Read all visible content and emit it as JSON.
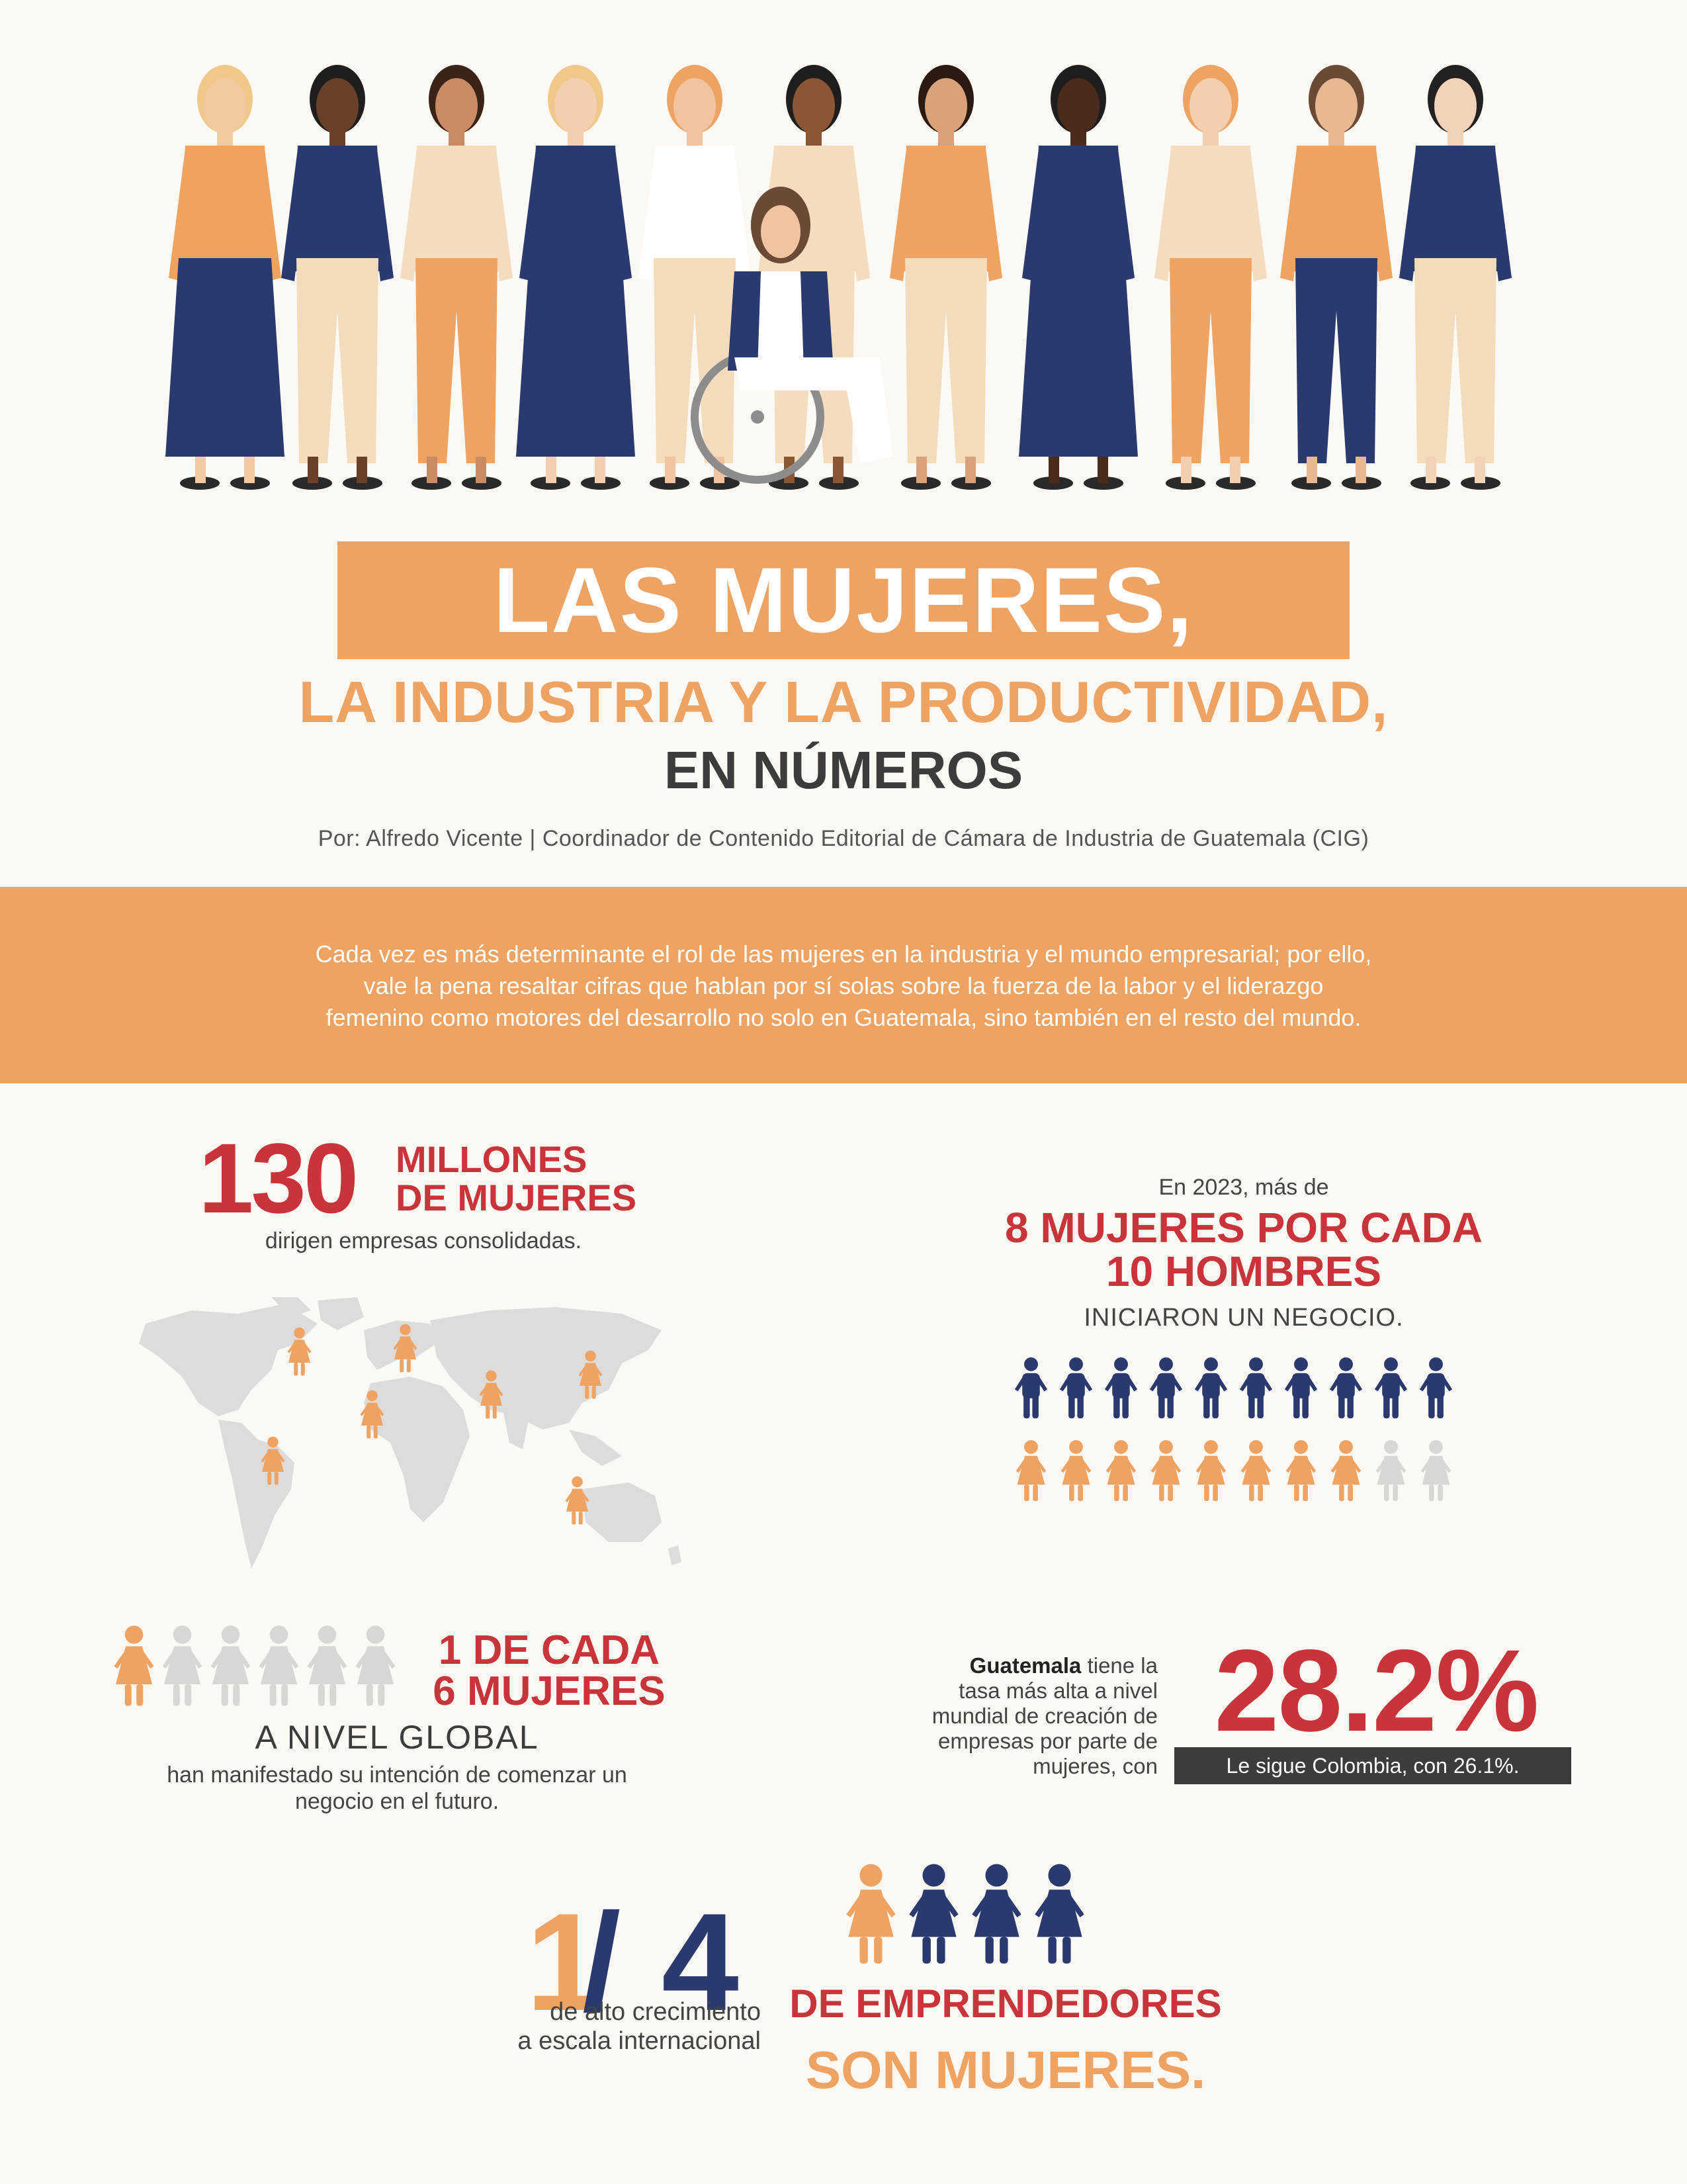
{
  "header": {
    "title_main": "LAS MUJERES,",
    "title_sub": "LA INDUSTRIA Y LA PRODUCTIVIDAD,",
    "title_third": "EN NÚMEROS",
    "byline": "Por: Alfredo Vicente | Coordinador de Contenido Editorial de Cámara de Industria de Guatemala (CIG)"
  },
  "intro": {
    "line1": "Cada vez es más determinante el rol de las mujeres en la industria y el mundo empresarial; por ello,",
    "line2": "vale la pena resaltar cifras que hablan por sí solas sobre la fuerza de la labor y el liderazgo",
    "line3": "femenino como motores del desarrollo no solo en Guatemala, sino también en el resto del mundo."
  },
  "stat1": {
    "number": "130",
    "unit_line1": "MILLONES",
    "unit_line2": "DE MUJERES",
    "description": "dirigen empresas consolidadas."
  },
  "stat2": {
    "pre": "En 2023, más de",
    "big_line1": "8 MUJERES POR CADA",
    "big_line2": "10 HOMBRES",
    "post": "INICIARON UN NEGOCIO.",
    "men_count": 10,
    "women_count": 8,
    "total": 10
  },
  "stat3": {
    "big_line1": "1 DE CADA",
    "big_line2": "6 MUJERES",
    "mid": "A NIVEL GLOBAL",
    "desc_line1": "han manifestado su intención de comenzar un",
    "desc_line2": "negocio en el futuro.",
    "highlighted": 1,
    "total": 6
  },
  "stat4": {
    "country": "Guatemala",
    "text_line1": " tiene la",
    "text_line2": "tasa más alta a nivel",
    "text_line3": "mundial de creación de",
    "text_line4": "empresas por parte de",
    "text_line5": "mujeres, con",
    "number": "28.2%",
    "note": "Le sigue Colombia, con 26.1%."
  },
  "stat5": {
    "numerator": "1",
    "slash": "/",
    "denominator": "4",
    "desc_line1": "de alto crecimiento",
    "desc_line2": "a escala internacional",
    "big_line1": "DE EMPRENDEDORES",
    "big_line2": "SON MUJERES."
  },
  "colors": {
    "accent_orange": "#eea362",
    "accent_red": "#c9343b",
    "navy": "#2b3a6e",
    "grey_icon": "#d9d6d3",
    "background": "#fcf8f4",
    "map_grey": "#dedcda"
  }
}
